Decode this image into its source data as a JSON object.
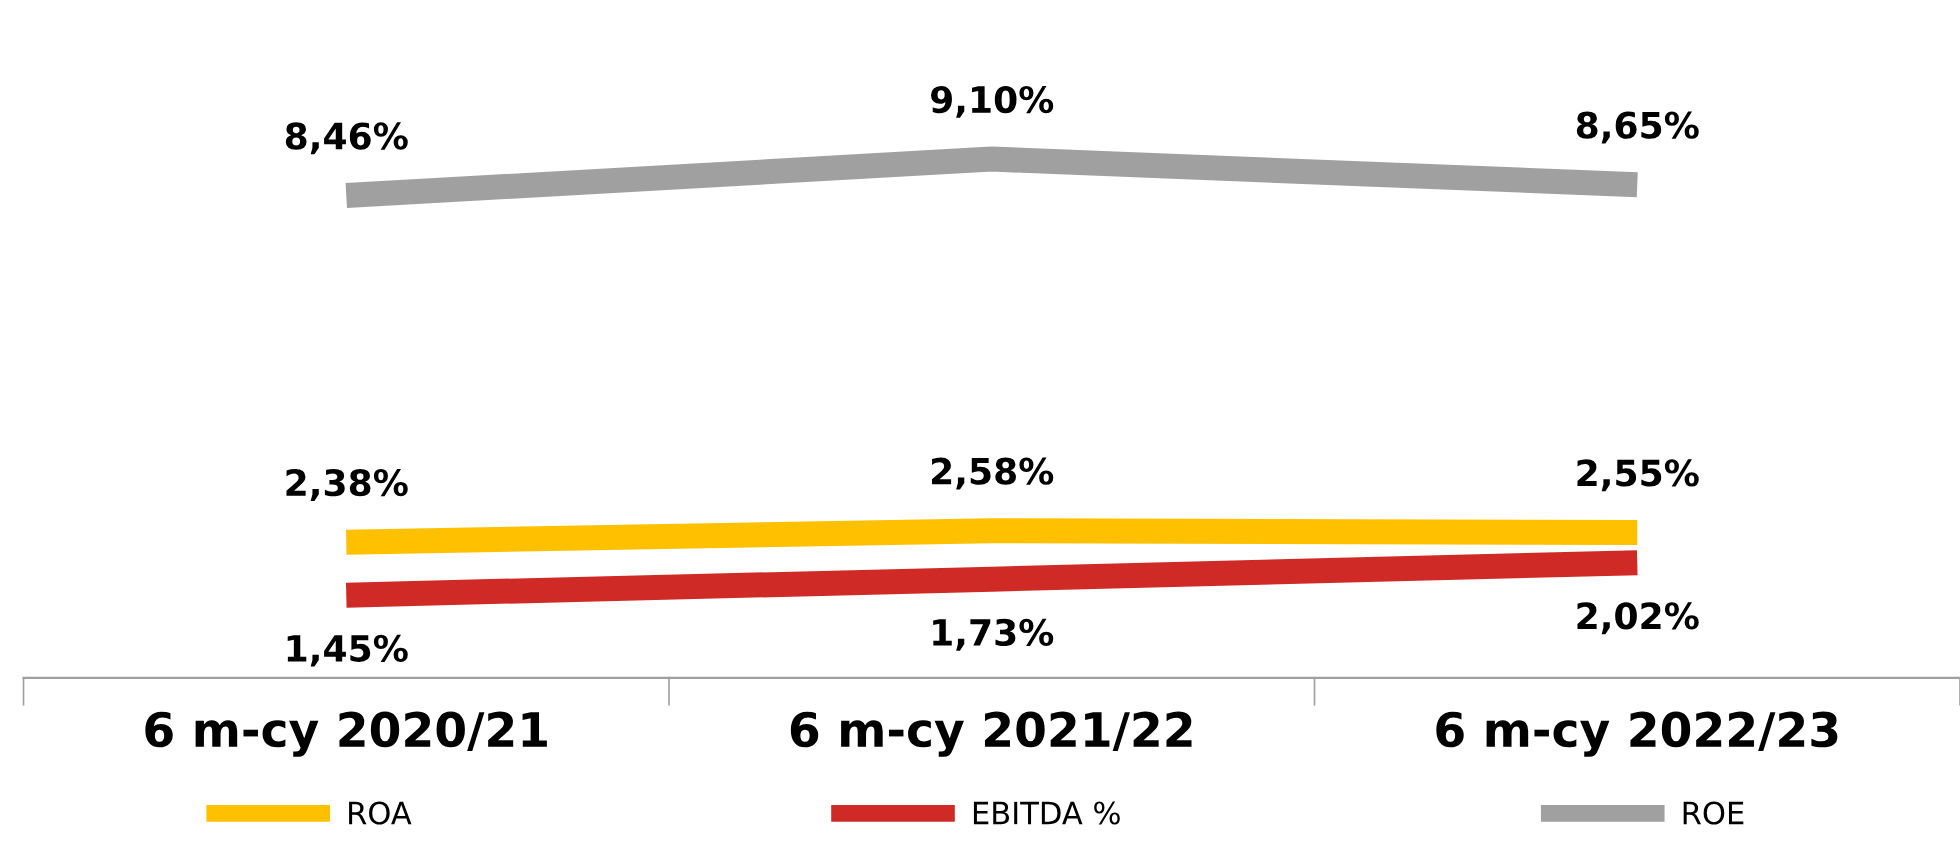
{
  "chart_data": {
    "type": "line",
    "categories": [
      "6 m-cy 2020/21",
      "6 m-cy 2021/22",
      "6 m-cy 2022/23"
    ],
    "series": [
      {
        "name": "ROA",
        "color": "#ffc000",
        "values": [
          2.38,
          2.58,
          2.55
        ],
        "value_labels": [
          "2,38%",
          "2,58%",
          "2,55%"
        ]
      },
      {
        "name": "EBITDA %",
        "color": "#d02a26",
        "values": [
          1.45,
          1.73,
          2.02
        ],
        "value_labels": [
          "1,45%",
          "1,73%",
          "2,02%"
        ]
      },
      {
        "name": "ROE",
        "color": "#a0a0a0",
        "values": [
          8.46,
          9.1,
          8.65
        ],
        "value_labels": [
          "8,46%",
          "9,10%",
          "8,65%"
        ]
      }
    ],
    "tick_labels": "x",
    "legend": "bottom",
    "grid": false,
    "marker": "none",
    "line_style": "solid"
  }
}
